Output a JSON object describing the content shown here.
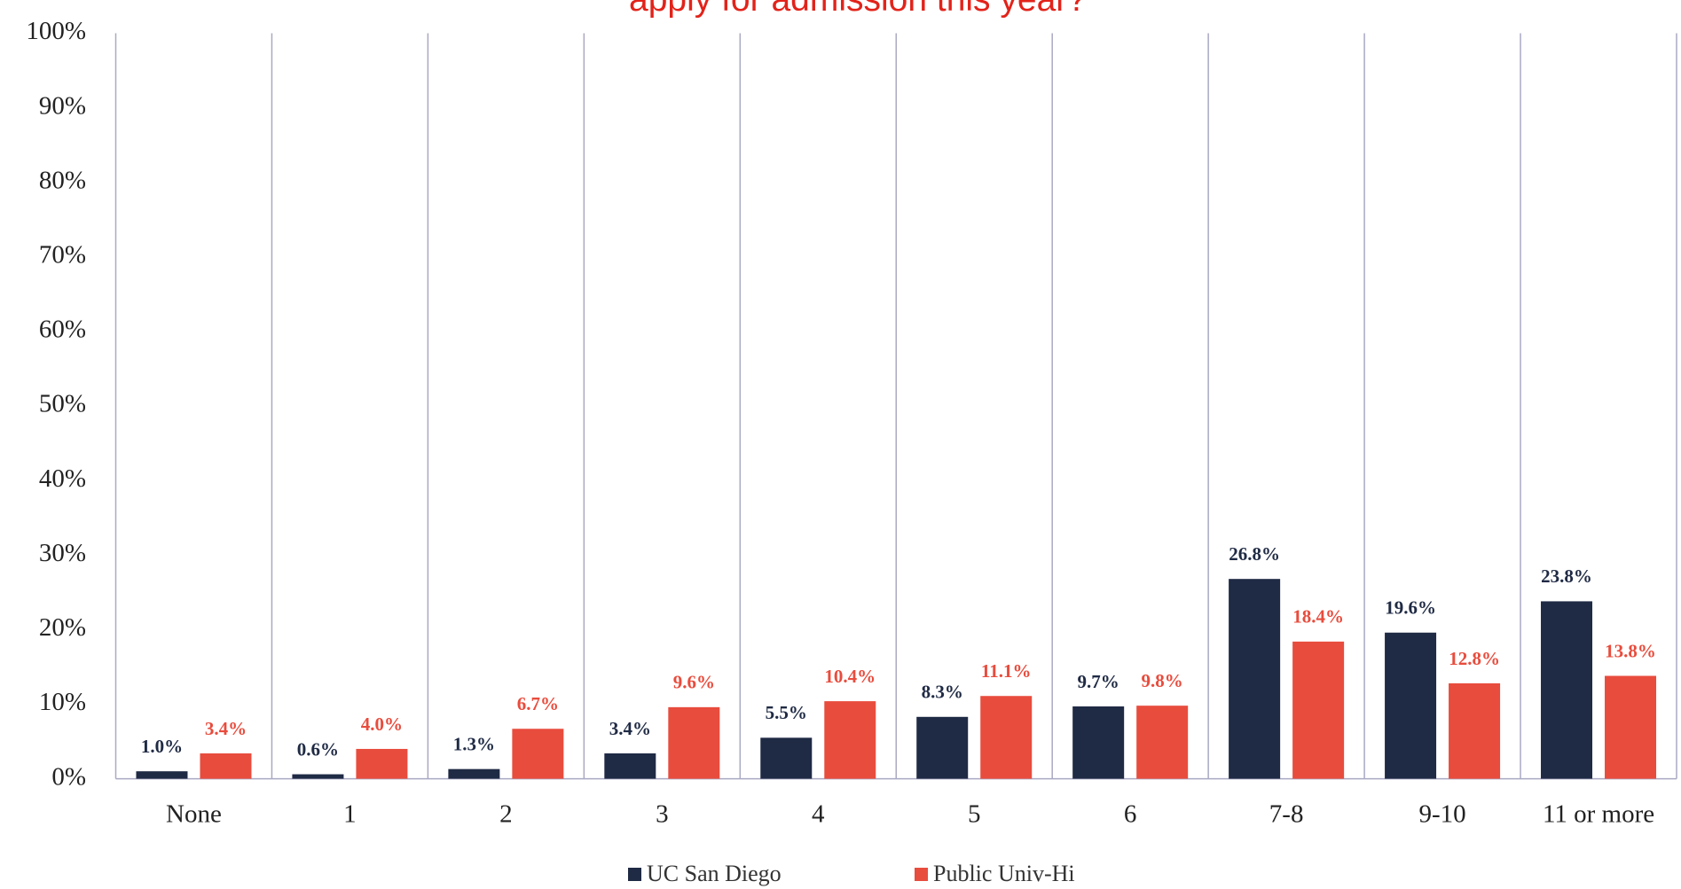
{
  "chart_data": {
    "type": "bar",
    "title": "apply for admission this year?",
    "title_color": "#e2231a",
    "categories": [
      "None",
      "1",
      "2",
      "3",
      "4",
      "5",
      "6",
      "7-8",
      "9-10",
      "11 or more"
    ],
    "series": [
      {
        "name": "UC San Diego",
        "color": "#1f2a44",
        "values": [
          1.0,
          0.6,
          1.3,
          3.4,
          5.5,
          8.3,
          9.7,
          26.8,
          19.6,
          23.8
        ],
        "value_labels": [
          "1.0%",
          "0.6%",
          "1.3%",
          "3.4%",
          "5.5%",
          "8.3%",
          "9.7%",
          "26.8%",
          "19.6%",
          "23.8%"
        ]
      },
      {
        "name": "Public Univ-Hi",
        "color": "#e84c3d",
        "values": [
          3.4,
          4.0,
          6.7,
          9.6,
          10.4,
          11.1,
          9.8,
          18.4,
          12.8,
          13.8
        ],
        "value_labels": [
          "3.4%",
          "4.0%",
          "6.7%",
          "9.6%",
          "10.4%",
          "11.1%",
          "9.8%",
          "18.4%",
          "12.8%",
          "13.8%"
        ]
      }
    ],
    "ylim": [
      0,
      100
    ],
    "yticks": [
      {
        "value": 0,
        "label": "0%"
      },
      {
        "value": 10,
        "label": "10%"
      },
      {
        "value": 20,
        "label": "20%"
      },
      {
        "value": 30,
        "label": "30%"
      },
      {
        "value": 40,
        "label": "40%"
      },
      {
        "value": 50,
        "label": "50%"
      },
      {
        "value": 60,
        "label": "60%"
      },
      {
        "value": 70,
        "label": "70%"
      },
      {
        "value": 80,
        "label": "80%"
      },
      {
        "value": 90,
        "label": "90%"
      },
      {
        "value": 100,
        "label": "100%"
      }
    ],
    "legend": "bottom"
  }
}
